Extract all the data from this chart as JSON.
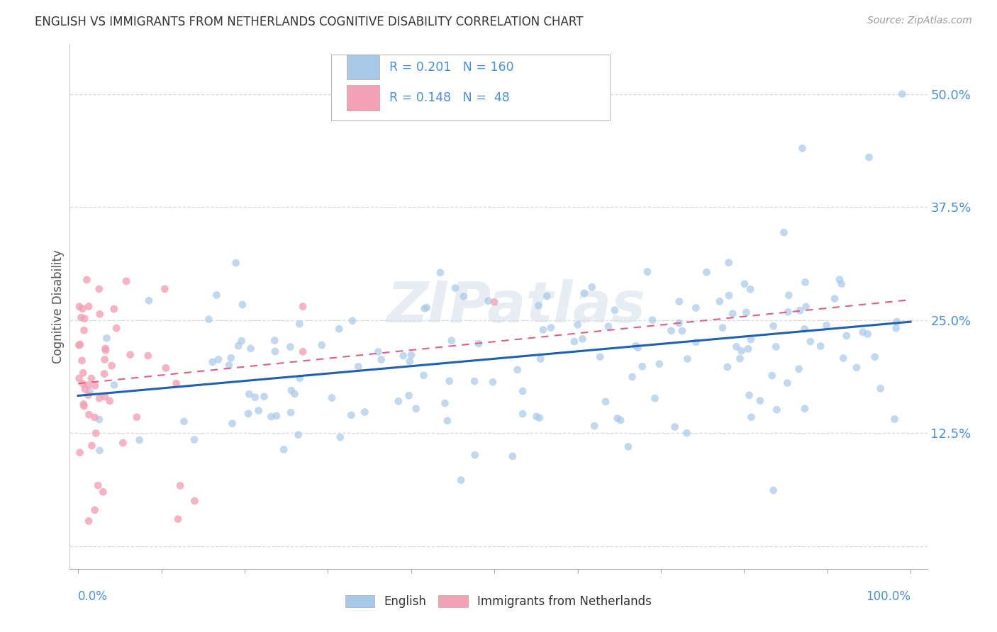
{
  "title": "ENGLISH VS IMMIGRANTS FROM NETHERLANDS COGNITIVE DISABILITY CORRELATION CHART",
  "source_text": "Source: ZipAtlas.com",
  "ylabel": "Cognitive Disability",
  "color_english": "#a8c8e8",
  "color_netherlands": "#f4a0b5",
  "color_line_english": "#2060b0",
  "color_line_netherlands": "#e06080",
  "color_axis_blue": "#4a90d9",
  "color_title": "#333333",
  "background_color": "#ffffff",
  "grid_color": "#d0d8e0",
  "watermark_color": "#d0dce8",
  "yticks": [
    0.0,
    0.125,
    0.25,
    0.375,
    0.5
  ],
  "ytick_labels": [
    "",
    "12.5%",
    "25.0%",
    "37.5%",
    "50.0%"
  ]
}
